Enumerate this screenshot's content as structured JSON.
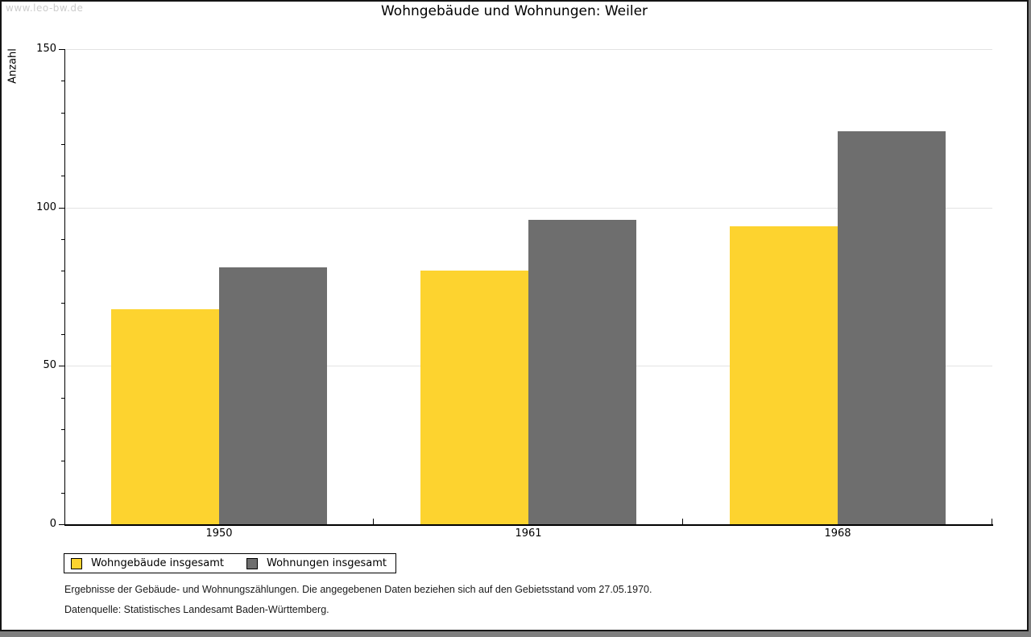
{
  "window": {
    "watermark": "www.leo-bw.de"
  },
  "chart_data": {
    "type": "bar",
    "title": "Wohngebäude und Wohnungen: Weiler",
    "xlabel": "",
    "ylabel": "Anzahl",
    "categories": [
      "1950",
      "1961",
      "1968"
    ],
    "series": [
      {
        "name": "Wohngebäude insgesamt",
        "color": "#fdd32f",
        "values": [
          68,
          80,
          94
        ]
      },
      {
        "name": "Wohnungen insgesamt",
        "color": "#6e6e6e",
        "values": [
          81,
          96,
          124
        ]
      }
    ],
    "ylim": [
      0,
      150
    ],
    "yticks": [
      0,
      50,
      100,
      150
    ],
    "minor_tick_step": 10,
    "grid": true,
    "gridline_color": "#e3e3e3",
    "legend_position": "bottom-left"
  },
  "footer": {
    "line1": "Ergebnisse der Gebäude- und Wohnungszählungen. Die angegebenen Daten beziehen sich auf den Gebietsstand vom 27.05.1970.",
    "line2": "Datenquelle: Statistisches Landesamt Baden-Württemberg."
  }
}
